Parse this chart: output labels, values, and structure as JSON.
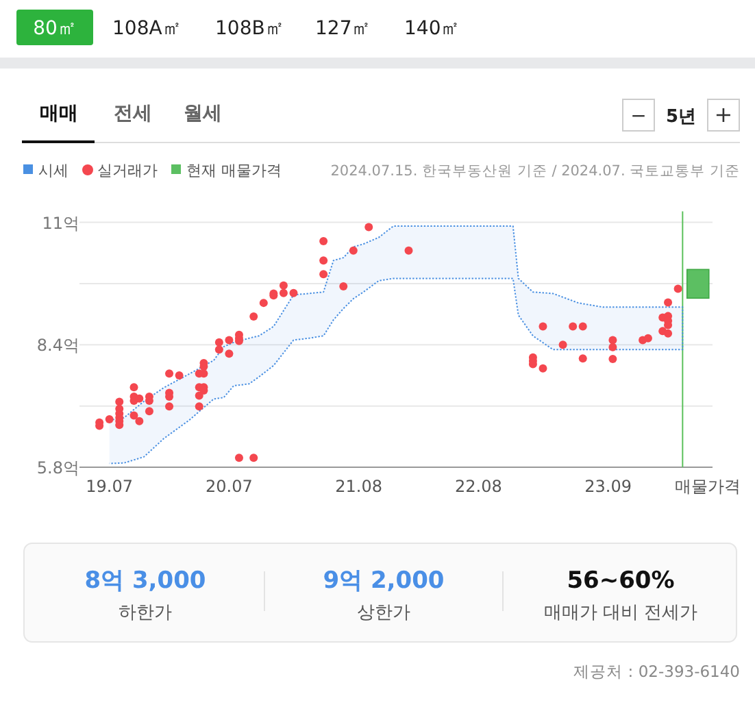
{
  "chart_data": [
    {
      "type": "other",
      "annotations": [
        "80㎡",
        "108A㎡",
        "108B㎡",
        "127㎡",
        "140㎡",
        "매매",
        "전세",
        "월세",
        "−",
        "5년",
        "+"
      ]
    },
    {
      "type": "scatter",
      "legend": "top left",
      "grid": "y",
      "annotations": [
        "2024.07.15. 한국부동산원 기준 / 2024.07. 국토교통부 기준"
      ],
      "xlim": [
        "2019-04-01",
        "2024-07-15"
      ],
      "xticks": [
        {
          "value": "2019-07-01",
          "label": "19.07"
        },
        {
          "value": "2020-07-01",
          "label": "20.07"
        },
        {
          "value": "2021-08-01",
          "label": "21.08"
        },
        {
          "value": "2022-08-01",
          "label": "22.08"
        },
        {
          "value": "2023-09-01",
          "label": "23.09"
        },
        {
          "value": "2024-07-01",
          "label": "매물가격"
        }
      ],
      "ylim": [
        5.8,
        11
      ],
      "yticks": [
        {
          "value": 5.8,
          "label": "5.8억"
        },
        {
          "value": 7.1,
          "label": null
        },
        {
          "value": 8.4,
          "label": "8.4억"
        },
        {
          "value": 9.7,
          "label": null
        },
        {
          "value": 11,
          "label": "11억"
        }
      ],
      "ref_lines": [
        {
          "axis": "x",
          "value": "2024-04-15",
          "color": "#5cc15c"
        }
      ],
      "series": [
        {
          "name": "시세",
          "type": "area",
          "color": "#4a90e2",
          "x": [
            "2019-07-01",
            "2019-08-15",
            "2019-10-15",
            "2019-12-15",
            "2020-03-01",
            "2020-05-15",
            "2020-06-15",
            "2020-07-15",
            "2020-09-01",
            "2020-10-01",
            "2020-11-15",
            "2021-01-15",
            "2021-03-01",
            "2021-04-15",
            "2021-05-15",
            "2021-06-15",
            "2021-07-15",
            "2021-08-15",
            "2021-10-01",
            "2021-11-15",
            "2022-01-15",
            "2022-05-15",
            "2022-09-15",
            "2022-11-15",
            "2022-12-01",
            "2023-01-15",
            "2023-03-15",
            "2023-06-01",
            "2023-08-15",
            "2023-12-15",
            "2024-04-15"
          ],
          "values": [
            null,
            null,
            null,
            null,
            null,
            null,
            null,
            null,
            null,
            null,
            null,
            null,
            null,
            null,
            null,
            null,
            null,
            null,
            null,
            null,
            null,
            null,
            null,
            null,
            null,
            null,
            null,
            null,
            null,
            null,
            null
          ],
          "upper": [
            6.8,
            6.85,
            7.2,
            7.49,
            7.78,
            8.07,
            8.36,
            8.45,
            8.54,
            8.59,
            8.79,
            9.46,
            9.49,
            9.52,
            10.19,
            10.25,
            10.48,
            10.54,
            10.68,
            10.92,
            10.92,
            10.92,
            10.92,
            10.92,
            9.81,
            9.52,
            9.49,
            9.29,
            9.2,
            9.2,
            9.2
          ],
          "lower": [
            5.88,
            5.89,
            6.02,
            6.41,
            6.8,
            7.25,
            7.28,
            7.53,
            7.57,
            7.72,
            7.96,
            8.5,
            8.54,
            8.59,
            8.93,
            9.17,
            9.38,
            9.52,
            9.76,
            9.81,
            9.81,
            9.81,
            9.81,
            9.81,
            9.03,
            8.59,
            8.3,
            8.3,
            8.3,
            8.3,
            8.3
          ]
        },
        {
          "name": "실거래가",
          "type": "scatter",
          "color": "#f4474f",
          "marker": "circle",
          "x": [
            "2019-06-01",
            "2019-06-01",
            "2019-07-01",
            "2019-08-01",
            "2019-08-01",
            "2019-08-01",
            "2019-08-01",
            "2019-08-01",
            "2019-08-01",
            "2019-09-15",
            "2019-09-15",
            "2019-09-15",
            "2019-09-15",
            "2019-10-01",
            "2019-10-01",
            "2019-11-01",
            "2019-11-01",
            "2019-11-01",
            "2020-01-01",
            "2020-01-01",
            "2020-01-01",
            "2020-01-01",
            "2020-02-01",
            "2020-04-01",
            "2020-04-01",
            "2020-04-01",
            "2020-04-01",
            "2020-04-15",
            "2020-04-15",
            "2020-04-15",
            "2020-04-15",
            "2020-04-15",
            "2020-06-01",
            "2020-06-01",
            "2020-07-01",
            "2020-07-01",
            "2020-08-01",
            "2020-08-01",
            "2020-08-01",
            "2020-09-15",
            "2020-10-15",
            "2020-11-15",
            "2020-11-15",
            "2020-12-15",
            "2020-12-15",
            "2021-01-15",
            "2021-04-15",
            "2021-04-15",
            "2021-04-15",
            "2021-06-15",
            "2021-07-15",
            "2021-09-01",
            "2020-08-01",
            "2020-09-15",
            "2022-01-01",
            "2023-01-15",
            "2023-01-15",
            "2023-01-15",
            "2023-02-15",
            "2023-02-15",
            "2023-04-15",
            "2023-05-15",
            "2023-06-15",
            "2023-06-15",
            "2023-09-15",
            "2023-09-15",
            "2023-09-15",
            "2023-12-15",
            "2024-01-01",
            "2024-02-15",
            "2024-02-15",
            "2024-03-01",
            "2024-03-01",
            "2024-03-01",
            "2024-03-01",
            "2024-03-01",
            "2024-04-01"
          ],
          "values": [
            6.75,
            6.68,
            6.82,
            7.19,
            7.04,
            6.94,
            6.85,
            6.78,
            6.7,
            7.5,
            7.3,
            7.21,
            6.9,
            7.26,
            6.78,
            7.3,
            7.21,
            6.99,
            7.79,
            7.38,
            7.3,
            7.09,
            7.75,
            7.79,
            7.5,
            7.32,
            7.09,
            8.01,
            7.94,
            7.79,
            7.5,
            7.43,
            8.45,
            8.3,
            8.5,
            8.21,
            8.61,
            8.54,
            8.48,
            9.0,
            9.29,
            9.49,
            9.45,
            9.66,
            9.5,
            9.5,
            10.6,
            10.19,
            9.9,
            9.64,
            10.4,
            10.9,
            6.0,
            6.0,
            10.4,
            8.13,
            8.06,
            7.99,
            8.79,
            7.9,
            8.4,
            8.79,
            8.79,
            8.11,
            8.5,
            8.35,
            8.1,
            8.5,
            8.54,
            8.98,
            8.69,
            9.3,
            9.01,
            8.91,
            8.82,
            8.64,
            9.59
          ]
        },
        {
          "name": "현재 매물가격",
          "type": "bar",
          "color": "#5cbf62",
          "x": [
            "2024-06-01"
          ],
          "base": [
            9.39
          ],
          "values": [
            0.61
          ]
        }
      ]
    },
    {
      "type": "other",
      "annotations": [
        "8억 3,000",
        "하한가",
        "9억 2,000",
        "상한가",
        "56~60%",
        "매매가 대비 전세가",
        "제공처 : 02-393-6140"
      ]
    }
  ]
}
